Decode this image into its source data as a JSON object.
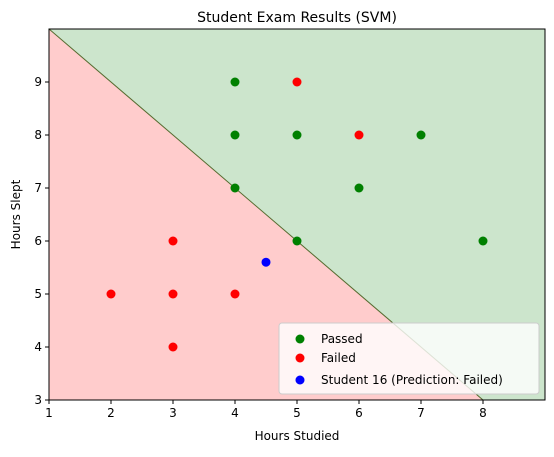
{
  "chart_data": {
    "type": "scatter",
    "title": "Student Exam Results (SVM)",
    "xlabel": "Hours Studied",
    "ylabel": "Hours Slept",
    "xlim": [
      1,
      9
    ],
    "ylim": [
      3,
      10
    ],
    "x_ticks": [
      1,
      2,
      3,
      4,
      5,
      6,
      7,
      8
    ],
    "y_ticks": [
      3,
      4,
      5,
      6,
      7,
      8,
      9
    ],
    "grid": false,
    "legend_position": "bottom-right",
    "decision_boundary": {
      "line": [
        [
          1,
          10
        ],
        [
          8,
          3
        ]
      ],
      "upper_region": {
        "label": "Passed",
        "color": "#cce5cc"
      },
      "lower_region": {
        "label": "Failed",
        "color": "#ffcccc"
      },
      "line_color": "#556b2f"
    },
    "series": [
      {
        "name": "Passed",
        "color": "#008000",
        "points": [
          [
            4,
            9
          ],
          [
            4,
            8
          ],
          [
            4,
            7
          ],
          [
            5,
            8
          ],
          [
            5,
            6
          ],
          [
            6,
            7
          ],
          [
            7,
            8
          ],
          [
            8,
            6
          ]
        ]
      },
      {
        "name": "Failed",
        "color": "#ff0000",
        "points": [
          [
            5,
            9
          ],
          [
            6,
            8
          ],
          [
            3,
            6
          ],
          [
            2,
            5
          ],
          [
            3,
            5
          ],
          [
            4,
            5
          ],
          [
            3,
            4
          ]
        ]
      },
      {
        "name": "Student 16 (Prediction: Failed)",
        "color": "#0000ff",
        "points": [
          [
            4.5,
            5.6
          ]
        ]
      }
    ]
  }
}
